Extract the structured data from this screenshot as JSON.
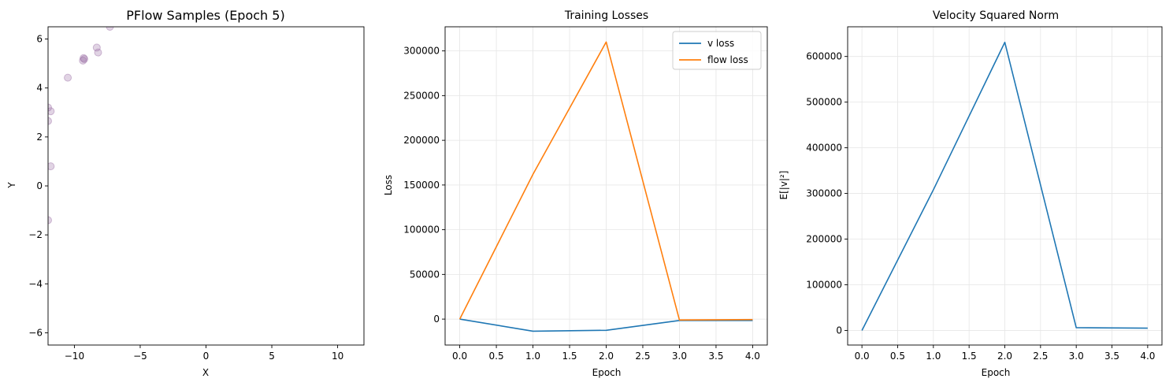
{
  "chart_data": [
    {
      "type": "scatter",
      "title": "PFlow Samples (Epoch 5)",
      "xlabel": "X",
      "ylabel": "Y",
      "xlim": [
        -12,
        12
      ],
      "ylim": [
        -6.5,
        6.5
      ],
      "xticks": [
        -10,
        -5,
        0,
        5,
        10
      ],
      "yticks": [
        -6,
        -4,
        -2,
        0,
        2,
        4,
        6
      ],
      "grid": false,
      "point_color": "#9b6fa6",
      "points": [
        {
          "x": -7.3,
          "y": 6.5
        },
        {
          "x": -8.3,
          "y": 5.65
        },
        {
          "x": -8.2,
          "y": 5.45
        },
        {
          "x": -9.3,
          "y": 5.22
        },
        {
          "x": -9.25,
          "y": 5.18
        },
        {
          "x": -9.35,
          "y": 5.12
        },
        {
          "x": -10.5,
          "y": 4.42
        },
        {
          "x": -11.8,
          "y": 3.05
        },
        {
          "x": -12.0,
          "y": 3.2
        },
        {
          "x": -12.0,
          "y": 2.65
        },
        {
          "x": -11.8,
          "y": 0.8
        },
        {
          "x": -12.0,
          "y": -1.4
        }
      ]
    },
    {
      "type": "line",
      "title": "Training Losses",
      "xlabel": "Epoch",
      "ylabel": "Loss",
      "xlim": [
        -0.2,
        4.2
      ],
      "ylim": [
        -29000,
        327000
      ],
      "xticks": [
        0.0,
        0.5,
        1.0,
        1.5,
        2.0,
        2.5,
        3.0,
        3.5,
        4.0
      ],
      "xtick_labels": [
        "0.0",
        "0.5",
        "1.0",
        "1.5",
        "2.0",
        "2.5",
        "3.0",
        "3.5",
        "4.0"
      ],
      "yticks": [
        0,
        50000,
        100000,
        150000,
        200000,
        250000,
        300000
      ],
      "ytick_labels": [
        "0",
        "50000",
        "100000",
        "150000",
        "200000",
        "250000",
        "300000"
      ],
      "grid": true,
      "legend_position": "top-right",
      "x": [
        0,
        1,
        2,
        3,
        4
      ],
      "series": [
        {
          "name": "v loss",
          "color": "#1f77b4",
          "values": [
            0,
            -13500,
            -12500,
            -1500,
            -1500
          ]
        },
        {
          "name": "flow loss",
          "color": "#ff7f0e",
          "values": [
            0,
            162000,
            310000,
            -1000,
            -500
          ]
        }
      ]
    },
    {
      "type": "line",
      "title": "Velocity Squared Norm",
      "xlabel": "Epoch",
      "ylabel": "E[|v|²]",
      "xlim": [
        -0.2,
        4.2
      ],
      "ylim": [
        -32000,
        665000
      ],
      "xticks": [
        0.0,
        0.5,
        1.0,
        1.5,
        2.0,
        2.5,
        3.0,
        3.5,
        4.0
      ],
      "xtick_labels": [
        "0.0",
        "0.5",
        "1.0",
        "1.5",
        "2.0",
        "2.5",
        "3.0",
        "3.5",
        "4.0"
      ],
      "yticks": [
        0,
        100000,
        200000,
        300000,
        400000,
        500000,
        600000
      ],
      "ytick_labels": [
        "0",
        "100000",
        "200000",
        "300000",
        "400000",
        "500000",
        "600000"
      ],
      "grid": true,
      "x": [
        0,
        1,
        2,
        3,
        4
      ],
      "series": [
        {
          "color": "#1f77b4",
          "values": [
            0,
            308000,
            631000,
            6000,
            5000
          ]
        }
      ]
    }
  ]
}
